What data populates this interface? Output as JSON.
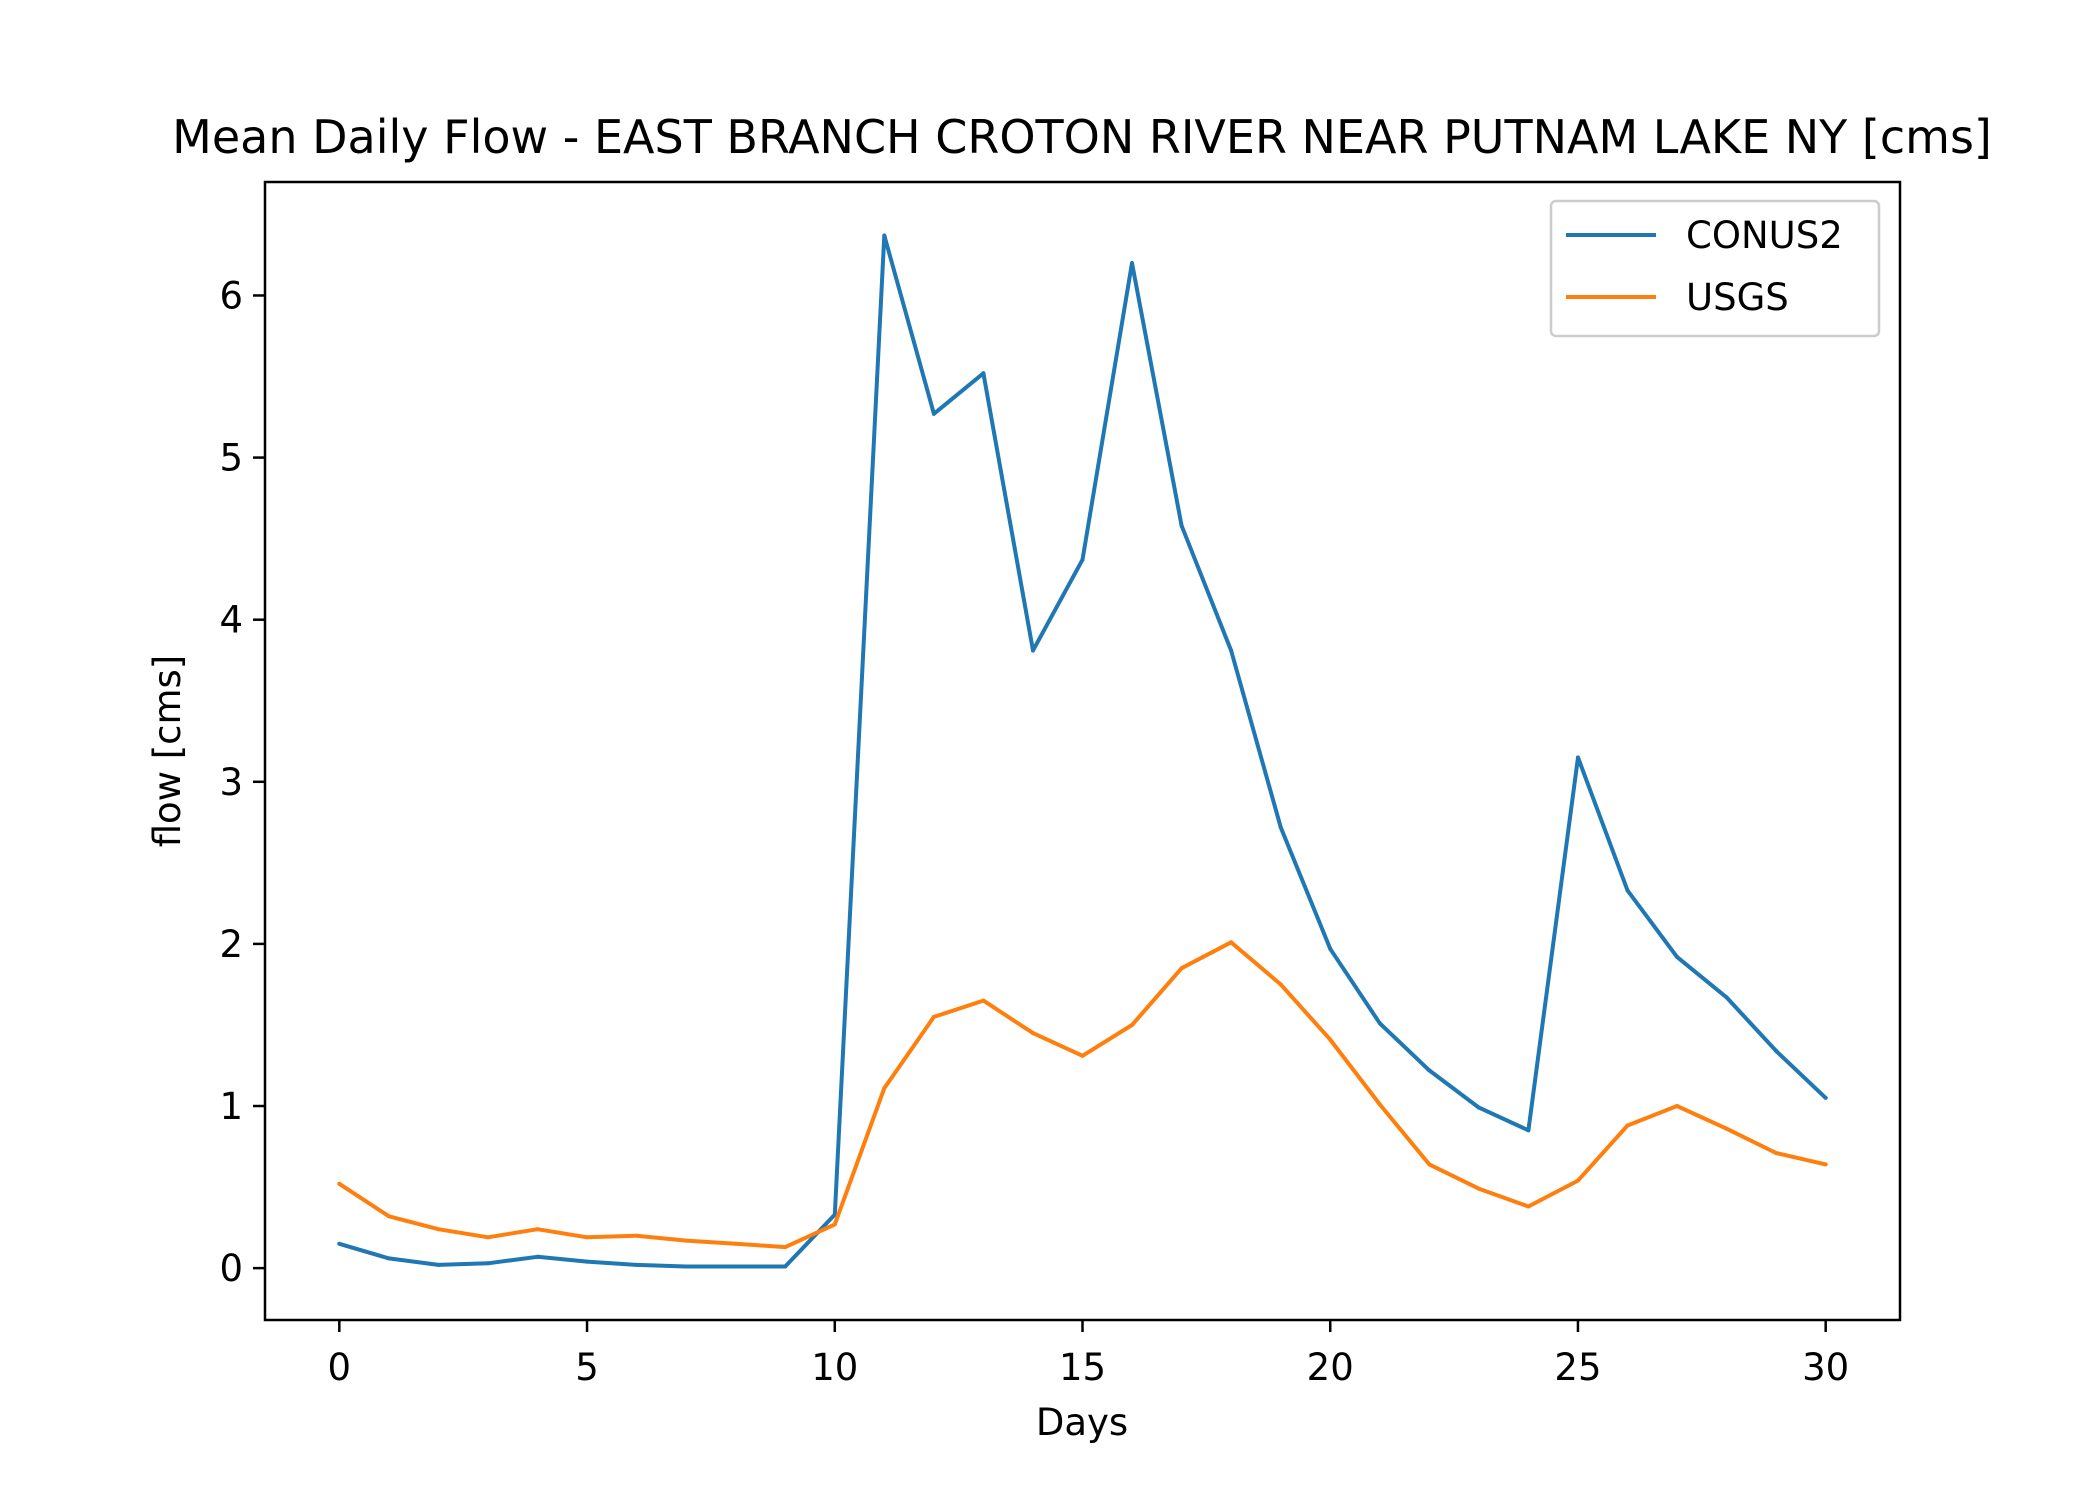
{
  "chart_data": {
    "type": "line",
    "title": "Mean Daily Flow - EAST BRANCH CROTON RIVER NEAR PUTNAM LAKE NY [cms]",
    "xlabel": "Days",
    "ylabel": "flow [cms]",
    "xlim": [
      -1.5,
      31.5
    ],
    "ylim": [
      -0.32,
      6.7
    ],
    "xticks": [
      0,
      5,
      10,
      15,
      20,
      25,
      30
    ],
    "yticks": [
      0,
      1,
      2,
      3,
      4,
      5,
      6
    ],
    "grid": false,
    "legend_position": "top-right",
    "x": [
      0,
      1,
      2,
      3,
      4,
      5,
      6,
      7,
      8,
      9,
      10,
      11,
      12,
      13,
      14,
      15,
      16,
      17,
      18,
      19,
      20,
      21,
      22,
      23,
      24,
      25,
      26,
      27,
      28,
      29,
      30
    ],
    "series": [
      {
        "name": "CONUS2",
        "color": "#1f77b4",
        "values": [
          0.15,
          0.06,
          0.02,
          0.03,
          0.07,
          0.04,
          0.02,
          0.01,
          0.01,
          0.01,
          0.33,
          6.37,
          5.27,
          5.52,
          3.81,
          4.37,
          6.2,
          4.58,
          3.81,
          2.72,
          1.97,
          1.51,
          1.22,
          0.99,
          0.85,
          3.15,
          2.33,
          1.92,
          1.67,
          1.34,
          1.05
        ]
      },
      {
        "name": "USGS",
        "color": "#ff7f0e",
        "values": [
          0.52,
          0.32,
          0.24,
          0.19,
          0.24,
          0.19,
          0.2,
          0.17,
          0.15,
          0.13,
          0.27,
          1.11,
          1.55,
          1.65,
          1.45,
          1.31,
          1.5,
          1.85,
          2.01,
          1.75,
          1.41,
          1.01,
          0.64,
          0.49,
          0.38,
          0.54,
          0.88,
          1.0,
          0.86,
          0.71,
          0.64
        ]
      }
    ]
  }
}
